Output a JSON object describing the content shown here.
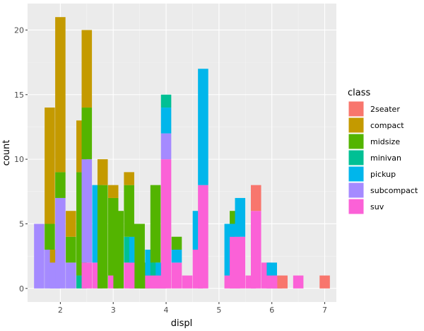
{
  "chart_data": {
    "type": "bar",
    "stacked": true,
    "xlabel": "displ",
    "ylabel": "count",
    "xlim": [
      1.38,
      7.22
    ],
    "ylim": [
      -1.05,
      22.05
    ],
    "xticks": [
      2,
      3,
      4,
      5,
      6,
      7
    ],
    "yticks": [
      0,
      5,
      10,
      15,
      20
    ],
    "grid": true,
    "legend": {
      "title": "class",
      "placement": "right"
    },
    "series": [
      {
        "name": "2seater",
        "color": "#F8766D"
      },
      {
        "name": "compact",
        "color": "#C49A00"
      },
      {
        "name": "midsize",
        "color": "#53B400"
      },
      {
        "name": "minivan",
        "color": "#00C094"
      },
      {
        "name": "pickup",
        "color": "#00B6EB"
      },
      {
        "name": "subcompact",
        "color": "#A58AFF"
      },
      {
        "name": "suv",
        "color": "#FB61D7"
      }
    ],
    "bins": [
      {
        "x": 1.6,
        "counts": {
          "subcompact": 5
        }
      },
      {
        "x": 1.8,
        "counts": {
          "subcompact": 3,
          "midsize": 2,
          "compact": 9
        }
      },
      {
        "x": 1.9,
        "counts": {
          "subcompact": 2,
          "compact": 1
        }
      },
      {
        "x": 2.0,
        "counts": {
          "subcompact": 7,
          "midsize": 2,
          "compact": 12
        }
      },
      {
        "x": 2.2,
        "counts": {
          "subcompact": 2,
          "midsize": 2,
          "compact": 2
        }
      },
      {
        "x": 2.4,
        "counts": {
          "minivan": 1,
          "midsize": 8,
          "compact": 4
        }
      },
      {
        "x": 2.5,
        "counts": {
          "suv": 2,
          "subcompact": 8,
          "midsize": 4,
          "compact": 6
        }
      },
      {
        "x": 2.7,
        "counts": {
          "suv": 2,
          "pickup": 6
        }
      },
      {
        "x": 2.8,
        "counts": {
          "midsize": 8,
          "compact": 2
        }
      },
      {
        "x": 3.0,
        "counts": {
          "suv": 1,
          "midsize": 6,
          "compact": 1
        }
      },
      {
        "x": 3.1,
        "counts": {
          "midsize": 6
        }
      },
      {
        "x": 3.3,
        "counts": {
          "suv": 2,
          "minivan": 2,
          "midsize": 4,
          "compact": 1
        }
      },
      {
        "x": 3.4,
        "counts": {
          "suv": 2,
          "pickup": 2,
          "midsize": 1
        }
      },
      {
        "x": 3.5,
        "counts": {
          "midsize": 5
        }
      },
      {
        "x": 3.6,
        "counts": {
          "midsize": 2
        }
      },
      {
        "x": 3.7,
        "counts": {
          "suv": 1,
          "pickup": 2
        }
      },
      {
        "x": 3.8,
        "counts": {
          "suv": 1,
          "minivan": 1,
          "midsize": 6
        }
      },
      {
        "x": 3.9,
        "counts": {
          "suv": 1,
          "pickup": 1
        }
      },
      {
        "x": 4.0,
        "counts": {
          "suv": 10,
          "subcompact": 2,
          "pickup": 2,
          "minivan": 1
        }
      },
      {
        "x": 4.2,
        "counts": {
          "suv": 2,
          "pickup": 1,
          "midsize": 1
        }
      },
      {
        "x": 4.4,
        "counts": {
          "suv": 1
        }
      },
      {
        "x": 4.6,
        "counts": {
          "suv": 3,
          "pickup": 3
        }
      },
      {
        "x": 4.7,
        "counts": {
          "suv": 8,
          "pickup": 9
        }
      },
      {
        "x": 5.2,
        "counts": {
          "suv": 1,
          "pickup": 4
        }
      },
      {
        "x": 5.3,
        "counts": {
          "suv": 4,
          "pickup": 1,
          "midsize": 1
        }
      },
      {
        "x": 5.4,
        "counts": {
          "suv": 4,
          "pickup": 3
        }
      },
      {
        "x": 5.6,
        "counts": {
          "suv": 1
        }
      },
      {
        "x": 5.7,
        "counts": {
          "suv": 6,
          "2seater": 2
        }
      },
      {
        "x": 5.9,
        "counts": {
          "suv": 2
        }
      },
      {
        "x": 6.0,
        "counts": {
          "suv": 1,
          "pickup": 1
        }
      },
      {
        "x": 6.1,
        "counts": {
          "suv": 1
        }
      },
      {
        "x": 6.2,
        "counts": {
          "2seater": 1
        }
      },
      {
        "x": 6.5,
        "counts": {
          "suv": 1
        }
      },
      {
        "x": 7.0,
        "counts": {
          "2seater": 1
        }
      }
    ]
  }
}
